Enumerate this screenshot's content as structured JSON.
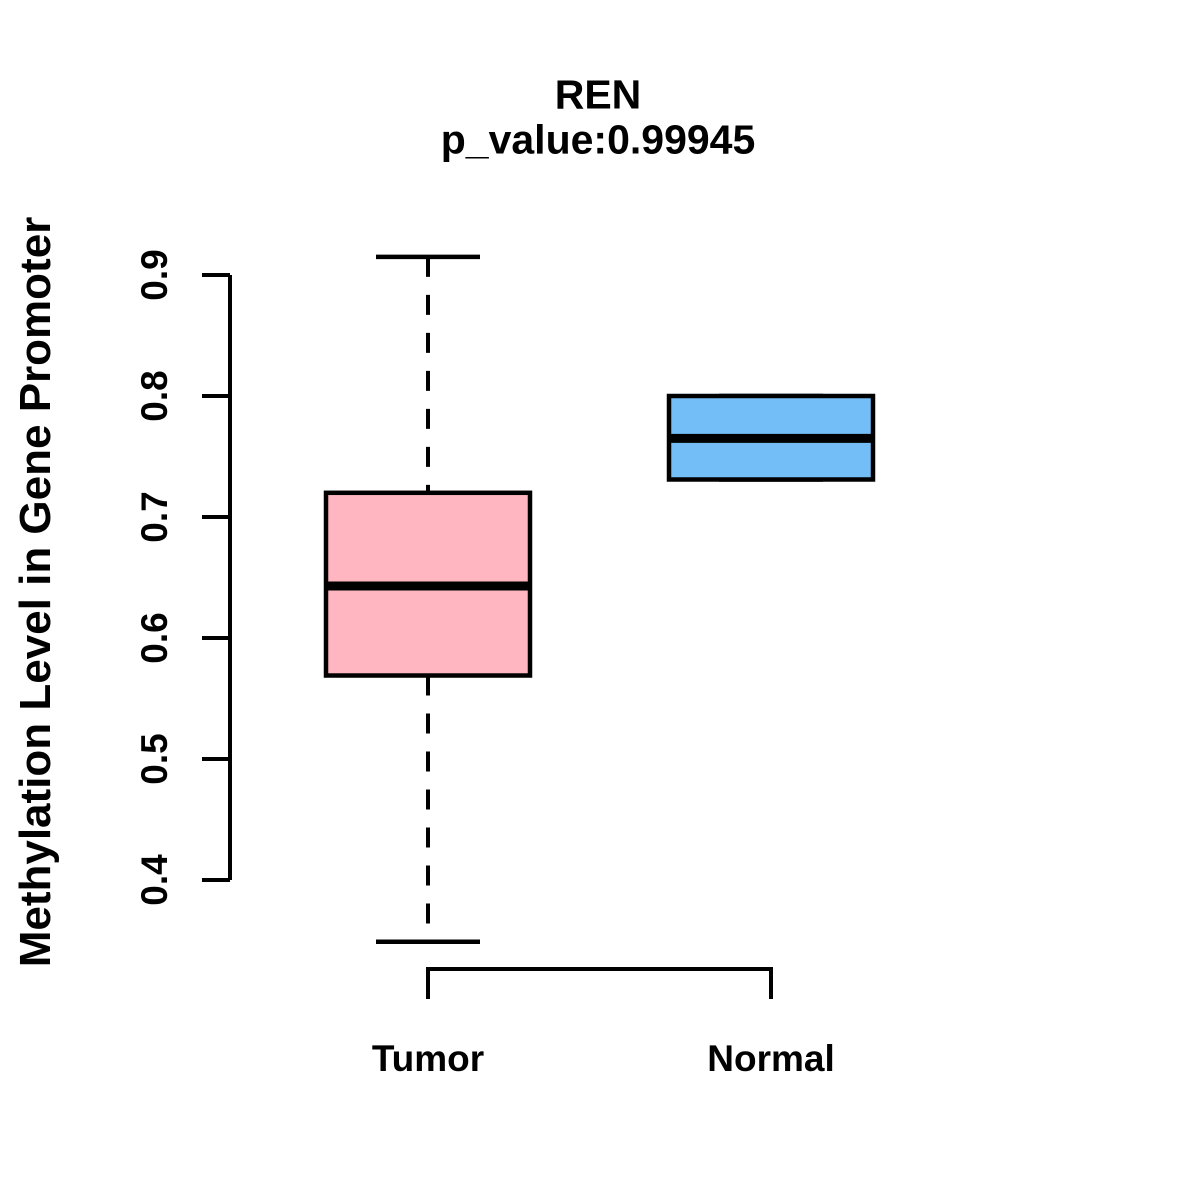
{
  "chart_data": {
    "type": "boxplot",
    "title": "REN",
    "subtitle": "p_value:0.99945",
    "gene": "REN",
    "p_value": "0.99945",
    "ylabel": "Methylation Level in Gene Promoter",
    "xlabel": "",
    "yticks": [
      "0.4",
      "0.5",
      "0.6",
      "0.7",
      "0.8",
      "0.9"
    ],
    "ytick_values": [
      0.4,
      0.5,
      0.6,
      0.7,
      0.8,
      0.9
    ],
    "ylim": [
      0.345,
      0.918
    ],
    "grid": false,
    "legend": "none",
    "orientation": "vertical",
    "groups": [
      {
        "label": "Tumor",
        "color": "#FFB6C1",
        "border_color": "#000000",
        "whisker_low": 0.349,
        "q1": 0.569,
        "median": 0.643,
        "q3": 0.72,
        "whisker_high": 0.915,
        "outliers": []
      },
      {
        "label": "Normal",
        "color": "#74BEF8",
        "border_color": "#000000",
        "whisker_low": 0.731,
        "q1": 0.731,
        "median": 0.765,
        "q3": 0.8,
        "whisker_high": 0.8,
        "outliers": []
      }
    ]
  }
}
